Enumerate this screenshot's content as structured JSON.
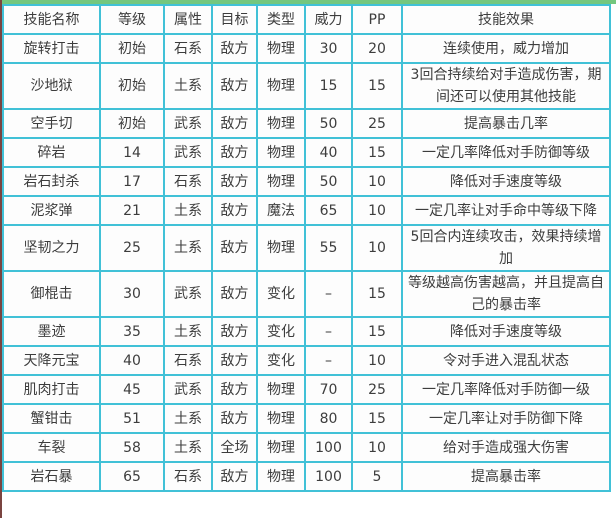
{
  "colors": {
    "border": "#41C1D7",
    "top_strip": "#74C77E",
    "left_edge": "#7A4440",
    "cell_bg": "#FDFDFD",
    "text": "#3D3D3D"
  },
  "table": {
    "columns": [
      {
        "key": "name",
        "label": "技能名称"
      },
      {
        "key": "level",
        "label": "等级"
      },
      {
        "key": "attribute",
        "label": "属性"
      },
      {
        "key": "target",
        "label": "目标"
      },
      {
        "key": "type",
        "label": "类型"
      },
      {
        "key": "power",
        "label": "威力"
      },
      {
        "key": "pp",
        "label": "PP"
      },
      {
        "key": "effect",
        "label": "技能效果"
      }
    ],
    "rows": [
      {
        "name": "旋转打击",
        "level": "初始",
        "attribute": "石系",
        "target": "敌方",
        "type": "物理",
        "power": "30",
        "pp": "20",
        "effect": "连续使用，威力增加"
      },
      {
        "name": "沙地狱",
        "level": "初始",
        "attribute": "土系",
        "target": "敌方",
        "type": "物理",
        "power": "15",
        "pp": "15",
        "effect": "3回合持续给对手造成伤害，期间还可以使用其他技能"
      },
      {
        "name": "空手切",
        "level": "初始",
        "attribute": "武系",
        "target": "敌方",
        "type": "物理",
        "power": "50",
        "pp": "25",
        "effect": "提高暴击几率"
      },
      {
        "name": "碎岩",
        "level": "14",
        "attribute": "武系",
        "target": "敌方",
        "type": "物理",
        "power": "40",
        "pp": "15",
        "effect": "一定几率降低对手防御等级"
      },
      {
        "name": "岩石封杀",
        "level": "17",
        "attribute": "石系",
        "target": "敌方",
        "type": "物理",
        "power": "50",
        "pp": "10",
        "effect": "降低对手速度等级"
      },
      {
        "name": "泥浆弹",
        "level": "21",
        "attribute": "土系",
        "target": "敌方",
        "type": "魔法",
        "power": "65",
        "pp": "10",
        "effect": "一定几率让对手命中等级下降"
      },
      {
        "name": "坚韧之力",
        "level": "25",
        "attribute": "土系",
        "target": "敌方",
        "type": "物理",
        "power": "55",
        "pp": "10",
        "effect": "5回合内连续攻击，效果持续增加"
      },
      {
        "name": "御棍击",
        "level": "30",
        "attribute": "武系",
        "target": "敌方",
        "type": "变化",
        "power": "–",
        "pp": "15",
        "effect": "等级越高伤害越高，并且提高自己的暴击率"
      },
      {
        "name": "墨迹",
        "level": "35",
        "attribute": "土系",
        "target": "敌方",
        "type": "变化",
        "power": "–",
        "pp": "15",
        "effect": "降低对手速度等级"
      },
      {
        "name": "天降元宝",
        "level": "40",
        "attribute": "石系",
        "target": "敌方",
        "type": "变化",
        "power": "–",
        "pp": "10",
        "effect": "令对手进入混乱状态"
      },
      {
        "name": "肌肉打击",
        "level": "45",
        "attribute": "武系",
        "target": "敌方",
        "type": "物理",
        "power": "70",
        "pp": "25",
        "effect": "一定几率降低对手防御一级"
      },
      {
        "name": "蟹钳击",
        "level": "51",
        "attribute": "土系",
        "target": "敌方",
        "type": "物理",
        "power": "80",
        "pp": "15",
        "effect": "一定几率让对手防御下降"
      },
      {
        "name": "车裂",
        "level": "58",
        "attribute": "土系",
        "target": "全场",
        "type": "物理",
        "power": "100",
        "pp": "10",
        "effect": "给对手造成强大伤害"
      },
      {
        "name": "岩石暴",
        "level": "65",
        "attribute": "石系",
        "target": "敌方",
        "type": "物理",
        "power": "100",
        "pp": "5",
        "effect": "提高暴击率"
      }
    ]
  }
}
